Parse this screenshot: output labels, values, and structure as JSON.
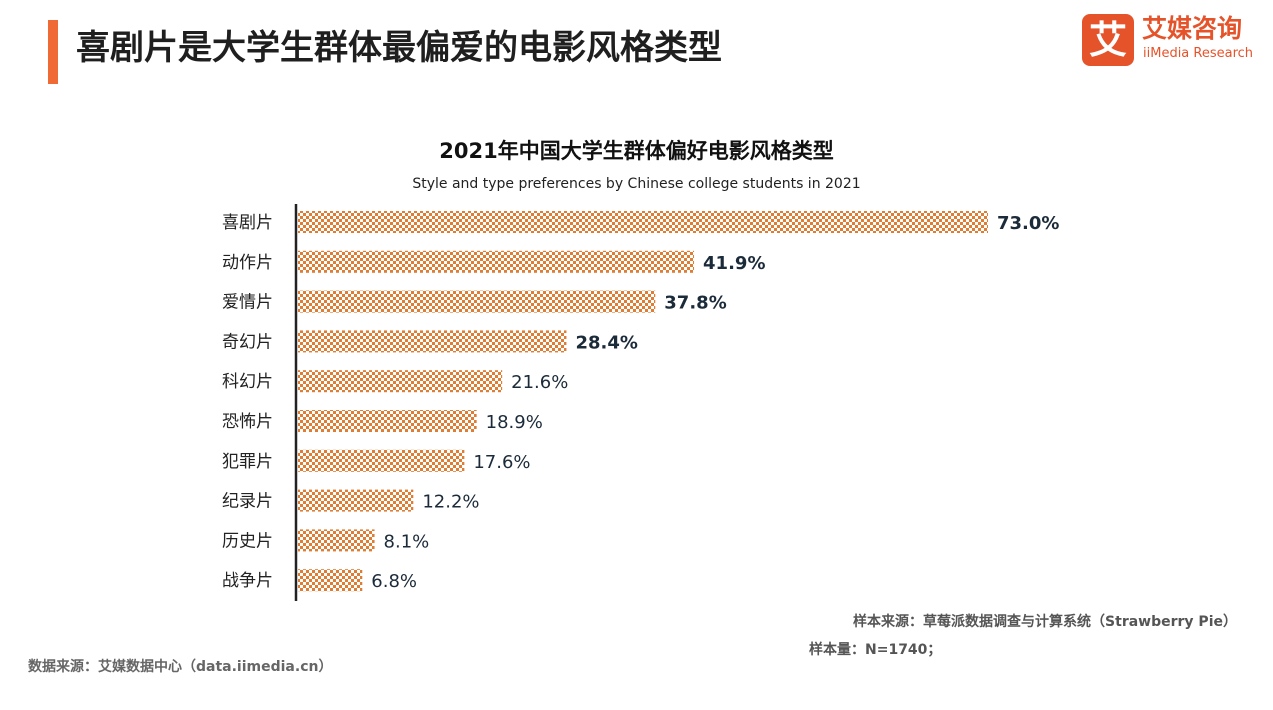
{
  "header": {
    "title": "喜剧片是大学生群体最偏爱的电影风格类型",
    "accent_color": "#f06a35"
  },
  "logo": {
    "glyph": "艾",
    "name_cn": "艾媒咨询",
    "name_en": "iiMedia Research",
    "color": "#e5532b"
  },
  "chart_data": {
    "type": "bar",
    "orientation": "horizontal",
    "title": "2021年中国大学生群体偏好电影风格类型",
    "subtitle": "Style and type preferences by Chinese college students in 2021",
    "categories": [
      "喜剧片",
      "动作片",
      "爱情片",
      "奇幻片",
      "科幻片",
      "恐怖片",
      "犯罪片",
      "纪录片",
      "历史片",
      "战争片"
    ],
    "values": [
      73.0,
      41.9,
      37.8,
      28.4,
      21.6,
      18.9,
      17.6,
      12.2,
      8.1,
      6.8
    ],
    "value_labels": [
      "73.0%",
      "41.9%",
      "37.8%",
      "28.4%",
      "21.6%",
      "18.9%",
      "17.6%",
      "12.2%",
      "8.1%",
      "6.8%"
    ],
    "bold_labels": [
      true,
      true,
      true,
      true,
      false,
      false,
      false,
      false,
      false,
      false
    ],
    "unit": "%",
    "xlim": [
      0,
      100
    ],
    "bar_color": "#e07d35",
    "grid": false,
    "legend": "none"
  },
  "notes": {
    "sample_source": "样本来源：草莓派数据调查与计算系统（Strawberry  Pie）",
    "sample_size": "样本量：N=1740；"
  },
  "footer": {
    "data_source": "数据来源：艾媒数据中心（data.iimedia.cn）"
  }
}
